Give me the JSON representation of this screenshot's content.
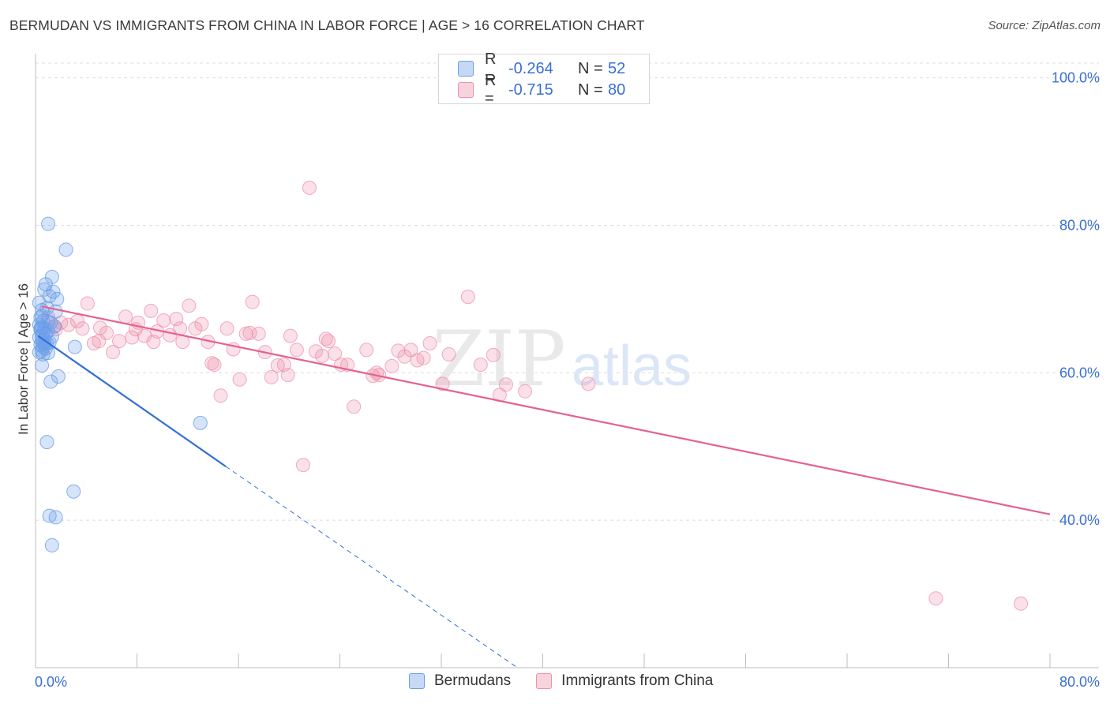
{
  "header": {
    "title": "BERMUDAN VS IMMIGRANTS FROM CHINA IN LABOR FORCE | AGE > 16 CORRELATION CHART",
    "source": "Source: ZipAtlas.com"
  },
  "watermark": {
    "zip": "ZIP",
    "atlas": "atlas"
  },
  "legend": {
    "rows": [
      {
        "r_label": "R =",
        "r_value": "-0.264",
        "n_label": "N =",
        "n_value": "52",
        "color": "#6d9ee8"
      },
      {
        "r_label": "R =",
        "r_value": "-0.715",
        "n_label": "N =",
        "n_value": "80",
        "color": "#ee90ab"
      }
    ]
  },
  "bottom_legend": {
    "items": [
      {
        "label": "Bermudans",
        "color": "#6d9ee8"
      },
      {
        "label": "Immigrants from China",
        "color": "#ee90ab"
      }
    ]
  },
  "chart_data": {
    "type": "scatter",
    "title": "BERMUDAN VS IMMIGRANTS FROM CHINA IN LABOR FORCE | AGE > 16 CORRELATION CHART",
    "xlabel": "",
    "ylabel": "In Labor Force | Age > 16",
    "xlim": [
      0,
      80
    ],
    "ylim": [
      20,
      102
    ],
    "x_tick_labels": [
      "0.0%",
      "80.0%"
    ],
    "y_tick_values": [
      100,
      80,
      60,
      40
    ],
    "y_tick_labels": [
      "100.0%",
      "80.0%",
      "60.0%",
      "40.0%"
    ],
    "grid": "horizontal dashed",
    "legend_position": "top-center",
    "colors": {
      "bermudans": "#6d9ee8",
      "china": "#ee90ab",
      "bermudans_line": "#2f6fd6",
      "china_line": "#e4628e"
    },
    "series": [
      {
        "name": "Bermudans",
        "r": -0.264,
        "n": 52,
        "trend": {
          "x0": 0.2,
          "y0": 65.0,
          "x1": 15.0,
          "y1": 47.3,
          "dash_to_x": 38.0,
          "dash_to_y": 20.0
        },
        "points": [
          [
            0.3,
            69.5
          ],
          [
            0.5,
            68.5
          ],
          [
            0.4,
            67.5
          ],
          [
            0.6,
            67.0
          ],
          [
            0.3,
            66.5
          ],
          [
            0.5,
            66.2
          ],
          [
            0.7,
            66.0
          ],
          [
            0.4,
            65.8
          ],
          [
            0.6,
            65.5
          ],
          [
            0.8,
            65.3
          ],
          [
            0.5,
            65.0
          ],
          [
            0.3,
            64.8
          ],
          [
            0.7,
            64.5
          ],
          [
            0.5,
            64.3
          ],
          [
            0.9,
            64.0
          ],
          [
            0.4,
            63.8
          ],
          [
            0.6,
            63.5
          ],
          [
            0.8,
            63.3
          ],
          [
            0.5,
            63.0
          ],
          [
            0.3,
            62.8
          ],
          [
            1.0,
            62.7
          ],
          [
            0.6,
            62.5
          ],
          [
            1.2,
            66.8
          ],
          [
            1.5,
            66.3
          ],
          [
            1.0,
            65.7
          ],
          [
            1.3,
            64.9
          ],
          [
            0.9,
            68.8
          ],
          [
            1.1,
            70.4
          ],
          [
            1.6,
            68.3
          ],
          [
            1.4,
            71.0
          ],
          [
            0.7,
            71.3
          ],
          [
            0.8,
            72.0
          ],
          [
            1.3,
            73.0
          ],
          [
            1.7,
            70.0
          ],
          [
            0.5,
            61.0
          ],
          [
            1.2,
            58.8
          ],
          [
            1.8,
            59.5
          ],
          [
            0.9,
            50.6
          ],
          [
            2.4,
            76.7
          ],
          [
            1.0,
            80.2
          ],
          [
            3.1,
            63.5
          ],
          [
            13.0,
            53.2
          ],
          [
            3.0,
            43.9
          ],
          [
            1.1,
            40.6
          ],
          [
            1.6,
            40.4
          ],
          [
            1.3,
            36.6
          ],
          [
            0.4,
            66.0
          ],
          [
            0.6,
            64.0
          ],
          [
            1.0,
            66.9
          ],
          [
            0.7,
            63.9
          ],
          [
            1.1,
            64.1
          ],
          [
            0.5,
            67.7
          ]
        ]
      },
      {
        "name": "Immigrants from China",
        "r": -0.715,
        "n": 80,
        "trend": {
          "x0": 0.5,
          "y0": 69.0,
          "x1": 80.0,
          "y1": 40.8
        },
        "points": [
          [
            1.0,
            67.5
          ],
          [
            1.5,
            66.3
          ],
          [
            2.0,
            66.8
          ],
          [
            2.6,
            66.5
          ],
          [
            3.3,
            67.0
          ],
          [
            3.7,
            66.0
          ],
          [
            4.1,
            69.4
          ],
          [
            4.6,
            64.0
          ],
          [
            5.1,
            66.1
          ],
          [
            5.6,
            65.4
          ],
          [
            6.1,
            62.8
          ],
          [
            6.6,
            64.3
          ],
          [
            7.1,
            67.6
          ],
          [
            7.6,
            64.8
          ],
          [
            8.1,
            66.8
          ],
          [
            8.6,
            65.0
          ],
          [
            9.1,
            68.4
          ],
          [
            9.6,
            65.6
          ],
          [
            10.1,
            67.1
          ],
          [
            10.6,
            65.1
          ],
          [
            11.1,
            67.3
          ],
          [
            11.6,
            64.2
          ],
          [
            12.1,
            69.1
          ],
          [
            12.6,
            66.0
          ],
          [
            13.1,
            66.6
          ],
          [
            13.6,
            64.2
          ],
          [
            14.1,
            61.1
          ],
          [
            14.6,
            56.9
          ],
          [
            15.1,
            66.0
          ],
          [
            15.6,
            63.2
          ],
          [
            16.1,
            59.1
          ],
          [
            16.6,
            65.3
          ],
          [
            17.1,
            69.6
          ],
          [
            17.6,
            65.3
          ],
          [
            18.1,
            62.8
          ],
          [
            18.6,
            59.4
          ],
          [
            19.1,
            61.0
          ],
          [
            19.6,
            61.1
          ],
          [
            20.1,
            65.0
          ],
          [
            20.6,
            63.1
          ],
          [
            21.1,
            47.5
          ],
          [
            21.6,
            85.1
          ],
          [
            22.1,
            62.9
          ],
          [
            22.6,
            62.3
          ],
          [
            23.1,
            64.3
          ],
          [
            23.6,
            62.6
          ],
          [
            24.1,
            61.1
          ],
          [
            24.6,
            61.1
          ],
          [
            25.1,
            55.4
          ],
          [
            26.1,
            63.1
          ],
          [
            26.6,
            59.6
          ],
          [
            27.1,
            59.7
          ],
          [
            28.1,
            60.9
          ],
          [
            28.6,
            63.0
          ],
          [
            29.1,
            62.2
          ],
          [
            29.6,
            63.1
          ],
          [
            30.6,
            62.0
          ],
          [
            31.1,
            64.0
          ],
          [
            32.1,
            58.5
          ],
          [
            32.6,
            62.5
          ],
          [
            34.1,
            70.3
          ],
          [
            35.1,
            61.1
          ],
          [
            36.1,
            62.4
          ],
          [
            36.6,
            57.0
          ],
          [
            37.1,
            58.4
          ],
          [
            38.6,
            57.5
          ],
          [
            43.6,
            58.5
          ],
          [
            71.0,
            29.4
          ],
          [
            77.7,
            28.7
          ],
          [
            5.0,
            64.3
          ],
          [
            7.9,
            65.9
          ],
          [
            9.3,
            64.2
          ],
          [
            11.4,
            66.0
          ],
          [
            13.9,
            61.3
          ],
          [
            16.9,
            65.4
          ],
          [
            19.9,
            59.7
          ],
          [
            22.9,
            64.6
          ],
          [
            26.9,
            60.0
          ],
          [
            30.1,
            61.7
          ],
          [
            1.6,
            65.9
          ]
        ]
      }
    ]
  }
}
